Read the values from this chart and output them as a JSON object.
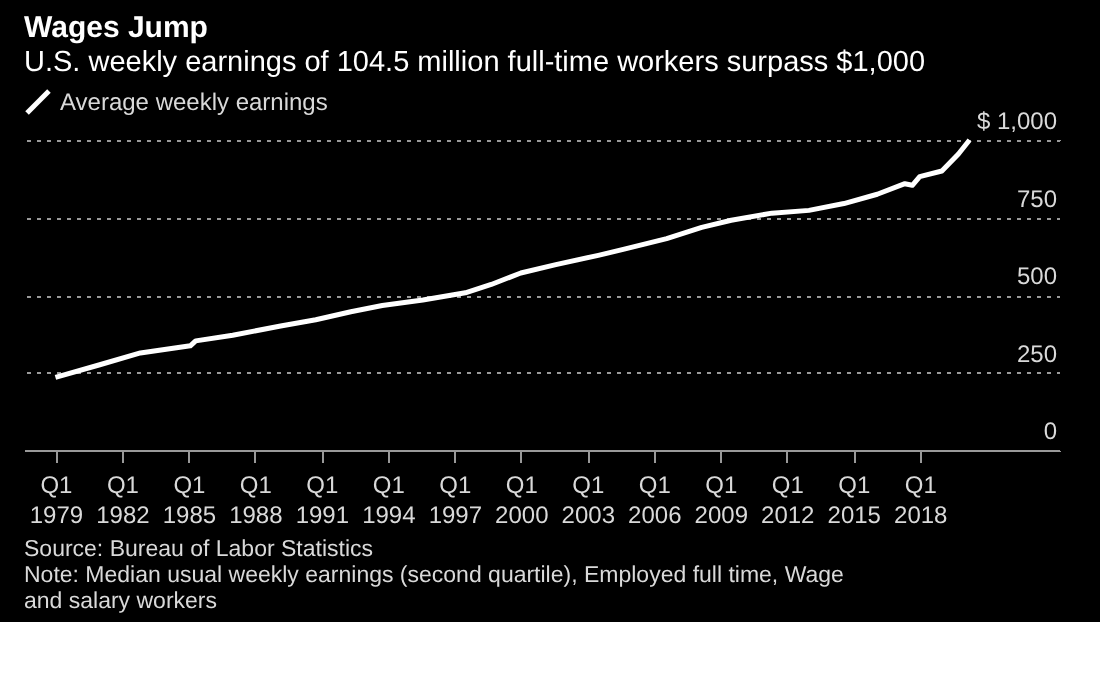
{
  "chart_data": {
    "type": "line",
    "title": "Wages Jump",
    "subtitle": "U.S. weekly earnings of 104.5 million full-time workers surpass $1,000",
    "x": [
      "1979-01",
      "1981-01",
      "1982-11",
      "1985-02",
      "1985-05",
      "1987-01",
      "1989-03",
      "1990-10",
      "1992-05",
      "1993-10",
      "1995-08",
      "1997-07",
      "1998-09",
      "2000-01",
      "2001-08",
      "2003-07",
      "2004-09",
      "2006-08",
      "2008-03",
      "2009-07",
      "2011-05",
      "2013-01",
      "2014-08",
      "2016-02",
      "2017-05",
      "2017-09",
      "2018-01",
      "2019-01",
      "2019-10",
      "2020-04"
    ],
    "series": [
      {
        "name": "Average weekly earnings",
        "color": "#ffffff",
        "values": [
          234,
          275,
          313,
          336,
          352,
          370,
          400,
          420,
          446,
          466,
          484,
          507,
          534,
          571,
          598,
          628,
          648,
          682,
          718,
          741,
          764,
          773,
          795,
          825,
          859,
          854,
          882,
          900,
          955,
          1000
        ]
      }
    ],
    "xlim": [
      "1977-08",
      "2024-05"
    ],
    "xticks": [
      {
        "value": "1979-01",
        "label": "Q1 1979"
      },
      {
        "value": "1982-01",
        "label": "Q1 1982"
      },
      {
        "value": "1985-01",
        "label": "Q1 1985"
      },
      {
        "value": "1988-01",
        "label": "Q1 1988"
      },
      {
        "value": "1991-01",
        "label": "Q1 1991"
      },
      {
        "value": "1994-01",
        "label": "Q1 1994"
      },
      {
        "value": "1997-01",
        "label": "Q1 1997"
      },
      {
        "value": "2000-01",
        "label": "Q1 2000"
      },
      {
        "value": "2003-01",
        "label": "Q1 2003"
      },
      {
        "value": "2006-01",
        "label": "Q1 2006"
      },
      {
        "value": "2009-01",
        "label": "Q1 2009"
      },
      {
        "value": "2012-01",
        "label": "Q1 2012"
      },
      {
        "value": "2015-01",
        "label": "Q1 2015"
      },
      {
        "value": "2018-01",
        "label": "Q1 2018"
      }
    ],
    "ylim": [
      0,
      1000
    ],
    "yticks": [
      0,
      250,
      500,
      750,
      {
        "value": 1000,
        "label": "$ 1,000"
      }
    ],
    "grid": "y",
    "legend": "top left",
    "marker": "none",
    "line_style": "solid",
    "annotations": [
      "Source: Bureau of Labor Statistics",
      "Note: Median usual weekly earnings (second quartile), Employed full time, Wage and salary workers"
    ]
  }
}
